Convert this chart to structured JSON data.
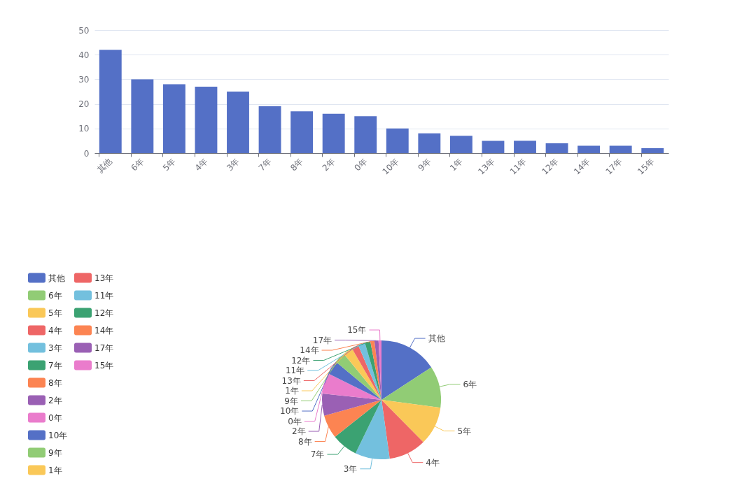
{
  "chart_data": [
    {
      "type": "bar",
      "categories": [
        "其他",
        "6年",
        "5年",
        "4年",
        "3年",
        "7年",
        "8年",
        "2年",
        "0年",
        "10年",
        "9年",
        "1年",
        "13年",
        "11年",
        "12年",
        "14年",
        "17年",
        "15年"
      ],
      "values": [
        42,
        30,
        28,
        27,
        25,
        19,
        17,
        16,
        15,
        10,
        8,
        7,
        5,
        5,
        4,
        3,
        3,
        2
      ],
      "color": "#5470c6",
      "ylim": [
        0,
        50
      ],
      "yticks": [
        0,
        10,
        20,
        30,
        40,
        50
      ],
      "grid": "y"
    },
    {
      "type": "pie",
      "categories": [
        "其他",
        "6年",
        "5年",
        "4年",
        "3年",
        "7年",
        "8年",
        "2年",
        "0年",
        "10年",
        "9年",
        "1年",
        "13年",
        "11年",
        "12年",
        "14年",
        "17年",
        "15年"
      ],
      "values": [
        15.8,
        11.3,
        10.5,
        10.2,
        9.4,
        7.1,
        6.4,
        6.0,
        5.6,
        3.8,
        3.0,
        2.6,
        1.9,
        1.9,
        1.5,
        1.1,
        1.1,
        0.8
      ],
      "colors": [
        "#5470c6",
        "#91cc75",
        "#fac858",
        "#ee6666",
        "#73c0de",
        "#3ba272",
        "#fc8452",
        "#9a60b4",
        "#ea7ccc",
        "#5470c6",
        "#91cc75",
        "#fac858",
        "#ee6666",
        "#73c0de",
        "#3ba272",
        "#fc8452",
        "#9a60b4",
        "#ea7ccc"
      ],
      "legend": "top left"
    }
  ]
}
